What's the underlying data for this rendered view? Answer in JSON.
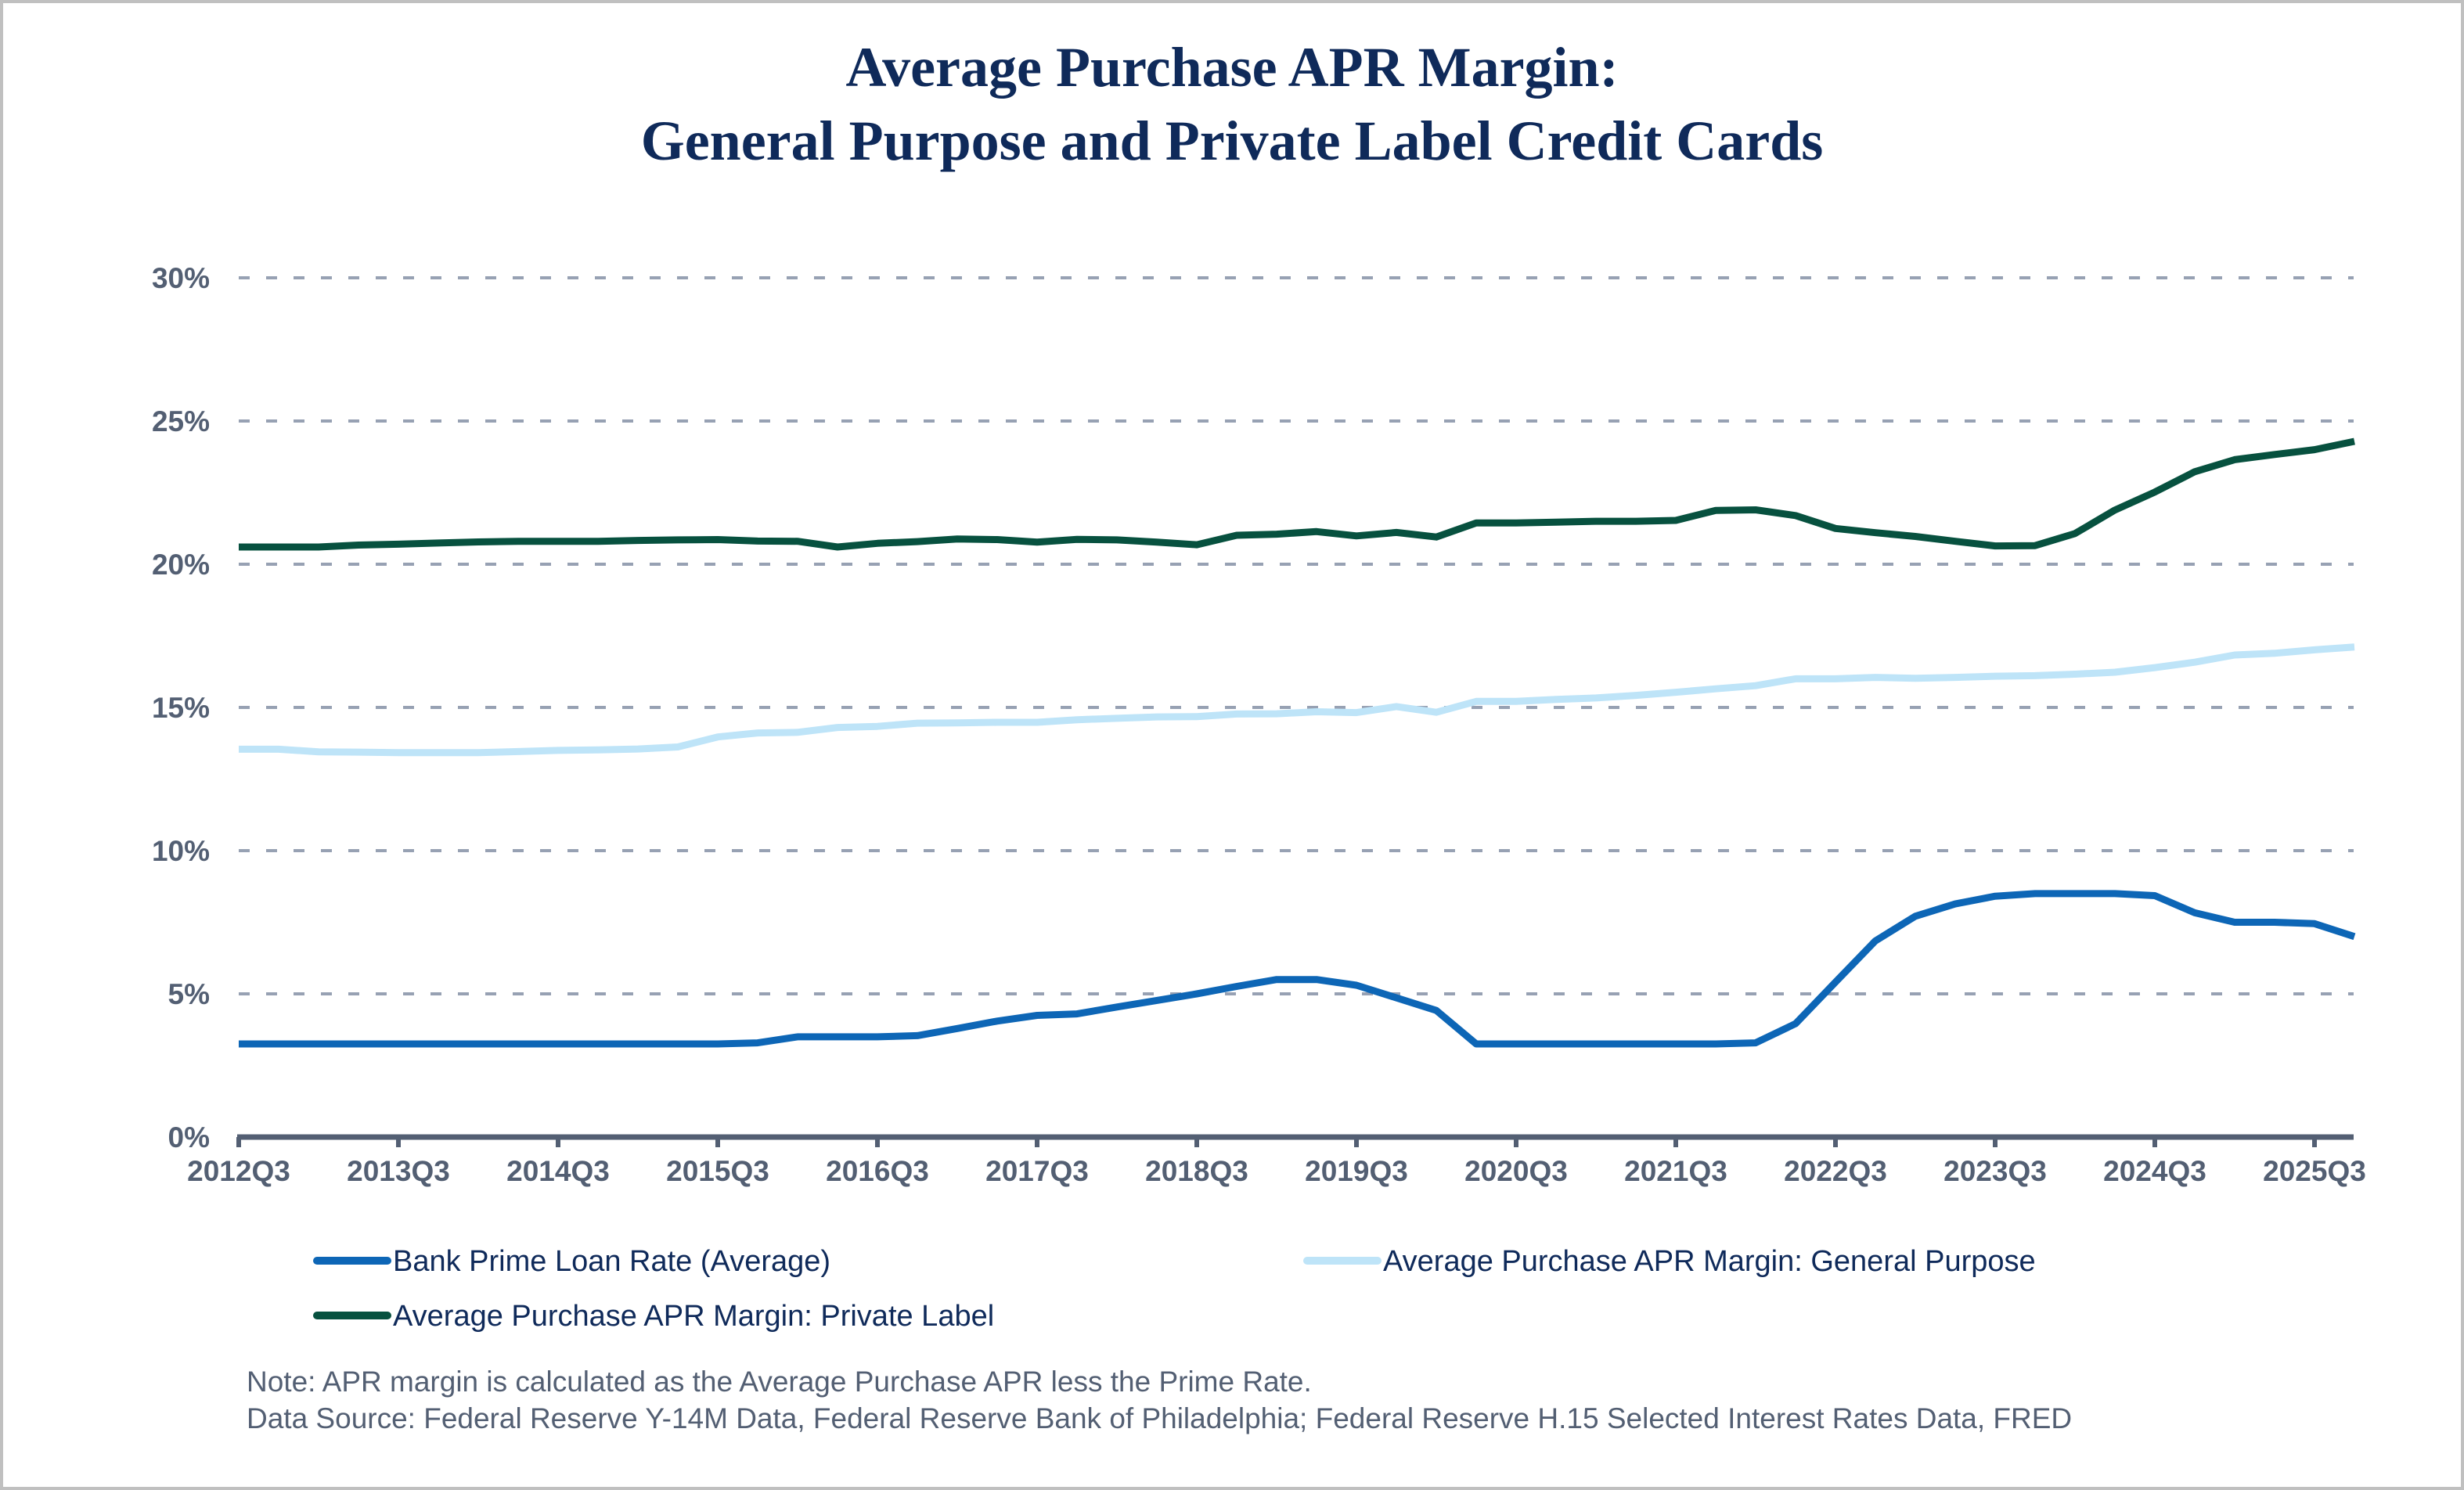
{
  "chart_data": {
    "type": "line",
    "title": "Average Purchase APR Margin:",
    "subtitle": "General Purpose and Private Label Credit Cards",
    "xlabel": "",
    "ylabel": "",
    "ylim": [
      0,
      30
    ],
    "yticks": [
      0,
      5,
      10,
      15,
      20,
      25,
      30
    ],
    "ytick_labels": [
      "0%",
      "5%",
      "10%",
      "15%",
      "20%",
      "25%",
      "30%"
    ],
    "grid": "horizontal-dashed",
    "x": [
      "2012Q3",
      "2012Q4",
      "2013Q1",
      "2013Q2",
      "2013Q3",
      "2013Q4",
      "2014Q1",
      "2014Q2",
      "2014Q3",
      "2014Q4",
      "2015Q1",
      "2015Q2",
      "2015Q3",
      "2015Q4",
      "2016Q1",
      "2016Q2",
      "2016Q3",
      "2016Q4",
      "2017Q1",
      "2017Q2",
      "2017Q3",
      "2017Q4",
      "2018Q1",
      "2018Q2",
      "2018Q3",
      "2018Q4",
      "2019Q1",
      "2019Q2",
      "2019Q3",
      "2019Q4",
      "2020Q1",
      "2020Q2",
      "2020Q3",
      "2020Q4",
      "2021Q1",
      "2021Q2",
      "2021Q3",
      "2021Q4",
      "2022Q1",
      "2022Q2",
      "2022Q3",
      "2022Q4",
      "2023Q1",
      "2023Q2",
      "2023Q3",
      "2023Q4",
      "2024Q1",
      "2024Q2",
      "2024Q3",
      "2024Q4",
      "2025Q1",
      "2025Q2",
      "2025Q3",
      "2025Q4"
    ],
    "xtick_labels": [
      "2012Q3",
      "2013Q3",
      "2014Q3",
      "2015Q3",
      "2016Q3",
      "2017Q3",
      "2018Q3",
      "2019Q3",
      "2020Q3",
      "2021Q3",
      "2022Q3",
      "2023Q3",
      "2024Q3",
      "2025Q3"
    ],
    "legend_position": "bottom",
    "series": [
      {
        "name": "Bank Prime Loan Rate (Average)",
        "color": "#0d66b6",
        "values": [
          3.25,
          3.25,
          3.25,
          3.25,
          3.25,
          3.25,
          3.25,
          3.25,
          3.25,
          3.25,
          3.25,
          3.25,
          3.25,
          3.29,
          3.5,
          3.5,
          3.5,
          3.54,
          3.79,
          4.05,
          4.25,
          4.3,
          4.54,
          4.77,
          5.0,
          5.26,
          5.5,
          5.5,
          5.3,
          4.86,
          4.42,
          3.25,
          3.25,
          3.25,
          3.25,
          3.25,
          3.25,
          3.25,
          3.29,
          3.96,
          5.41,
          6.85,
          7.71,
          8.14,
          8.41,
          8.5,
          8.5,
          8.5,
          8.43,
          7.83,
          7.5,
          7.5,
          7.45,
          7.0
        ]
      },
      {
        "name": "Average Purchase APR Margin: General Purpose",
        "color": "#bee4f8",
        "values": [
          13.54,
          13.54,
          13.45,
          13.44,
          13.42,
          13.42,
          13.42,
          13.46,
          13.5,
          13.52,
          13.55,
          13.62,
          13.97,
          14.11,
          14.13,
          14.3,
          14.34,
          14.45,
          14.46,
          14.48,
          14.48,
          14.57,
          14.62,
          14.67,
          14.68,
          14.77,
          14.78,
          14.85,
          14.82,
          15.03,
          14.83,
          15.21,
          15.21,
          15.28,
          15.33,
          15.42,
          15.53,
          15.65,
          15.76,
          16.0,
          16.0,
          16.05,
          16.02,
          16.05,
          16.09,
          16.11,
          16.16,
          16.23,
          16.39,
          16.58,
          16.83,
          16.89,
          17.01,
          17.11
        ]
      },
      {
        "name": "Average Purchase APR Margin: Private Label",
        "color": "#07513f",
        "values": [
          20.6,
          20.6,
          20.6,
          20.67,
          20.7,
          20.74,
          20.78,
          20.8,
          20.8,
          20.8,
          20.83,
          20.85,
          20.86,
          20.81,
          20.8,
          20.6,
          20.73,
          20.79,
          20.88,
          20.86,
          20.77,
          20.87,
          20.85,
          20.77,
          20.68,
          21.01,
          21.05,
          21.14,
          20.99,
          21.11,
          20.95,
          21.44,
          21.44,
          21.47,
          21.5,
          21.5,
          21.53,
          21.88,
          21.9,
          21.7,
          21.25,
          21.1,
          20.97,
          20.8,
          20.64,
          20.65,
          21.07,
          21.89,
          22.52,
          23.23,
          23.65,
          23.83,
          24.0,
          24.29
        ]
      }
    ]
  },
  "header": {
    "title_line1": "Average Purchase APR Margin:",
    "title_line2": "General Purpose and Private Label Credit Cards"
  },
  "footer": {
    "note": "Note: APR margin is calculated as the Average Purchase APR less the Prime Rate.",
    "source": "Data Source: Federal Reserve Y-14M Data, Federal Reserve Bank of Philadelphia; Federal Reserve H.15 Selected Interest Rates Data, FRED"
  },
  "colors": {
    "axis": "#535f73",
    "grid": "#97a1b3",
    "title": "#0f2a5a"
  }
}
